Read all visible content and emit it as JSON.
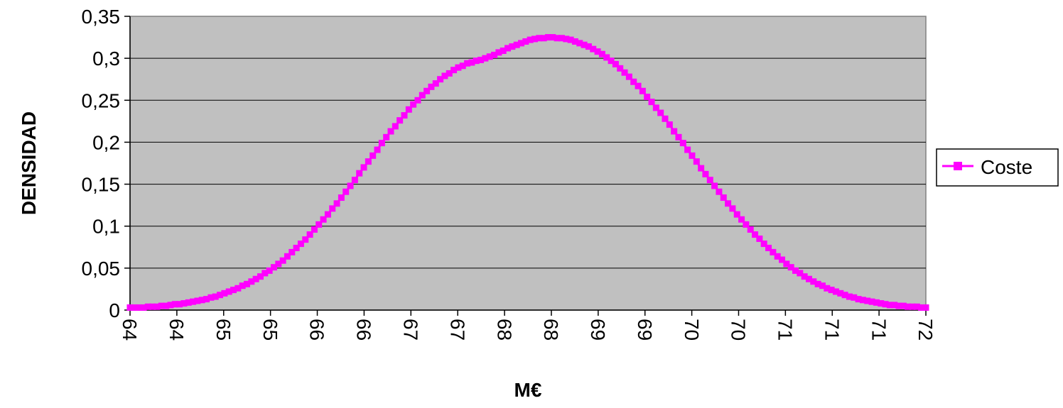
{
  "chart_data": {
    "type": "line",
    "title": "",
    "xlabel": "M€",
    "ylabel": "DENSIDAD",
    "x_tick_labels": [
      "64",
      "64",
      "65",
      "65",
      "66",
      "66",
      "67",
      "67",
      "68",
      "68",
      "69",
      "69",
      "70",
      "70",
      "71",
      "71",
      "71",
      "72"
    ],
    "y_tick_labels": [
      "0",
      "0,05",
      "0,1",
      "0,15",
      "0,2",
      "0,25",
      "0,3",
      "0,35"
    ],
    "ylim": [
      0,
      0.35
    ],
    "grid": true,
    "legend_position": "right",
    "plot_background": "#c0c0c0",
    "series": [
      {
        "name": "Coste",
        "color": "#ff00ff",
        "marker": "square",
        "peak_value": 0.324,
        "values": [
          0.003,
          0.003,
          0.003,
          0.003,
          0.004,
          0.004,
          0.004,
          0.005,
          0.005,
          0.006,
          0.007,
          0.007,
          0.008,
          0.009,
          0.01,
          0.011,
          0.012,
          0.013,
          0.015,
          0.016,
          0.018,
          0.02,
          0.022,
          0.024,
          0.026,
          0.029,
          0.031,
          0.034,
          0.037,
          0.04,
          0.044,
          0.047,
          0.051,
          0.055,
          0.059,
          0.064,
          0.069,
          0.074,
          0.079,
          0.084,
          0.09,
          0.096,
          0.102,
          0.108,
          0.114,
          0.121,
          0.127,
          0.134,
          0.141,
          0.148,
          0.155,
          0.163,
          0.17,
          0.177,
          0.184,
          0.191,
          0.199,
          0.206,
          0.213,
          0.219,
          0.226,
          0.232,
          0.239,
          0.245,
          0.25,
          0.256,
          0.261,
          0.266,
          0.27,
          0.275,
          0.279,
          0.282,
          0.286,
          0.289,
          0.291,
          0.294,
          0.295,
          0.297,
          0.298,
          0.3,
          0.302,
          0.304,
          0.307,
          0.309,
          0.312,
          0.314,
          0.316,
          0.318,
          0.32,
          0.322,
          0.323,
          0.324,
          0.324,
          0.325,
          0.325,
          0.324,
          0.324,
          0.323,
          0.322,
          0.32,
          0.318,
          0.316,
          0.314,
          0.311,
          0.308,
          0.305,
          0.301,
          0.297,
          0.293,
          0.288,
          0.283,
          0.278,
          0.272,
          0.267,
          0.261,
          0.254,
          0.248,
          0.241,
          0.235,
          0.228,
          0.221,
          0.213,
          0.206,
          0.199,
          0.191,
          0.184,
          0.177,
          0.169,
          0.162,
          0.155,
          0.148,
          0.141,
          0.134,
          0.127,
          0.121,
          0.114,
          0.108,
          0.102,
          0.096,
          0.09,
          0.085,
          0.079,
          0.074,
          0.069,
          0.064,
          0.06,
          0.055,
          0.051,
          0.047,
          0.044,
          0.04,
          0.037,
          0.034,
          0.031,
          0.029,
          0.026,
          0.024,
          0.022,
          0.02,
          0.018,
          0.016,
          0.015,
          0.013,
          0.012,
          0.011,
          0.01,
          0.009,
          0.008,
          0.007,
          0.006,
          0.006,
          0.005,
          0.005,
          0.004,
          0.004,
          0.004,
          0.003,
          0.003
        ]
      }
    ]
  }
}
